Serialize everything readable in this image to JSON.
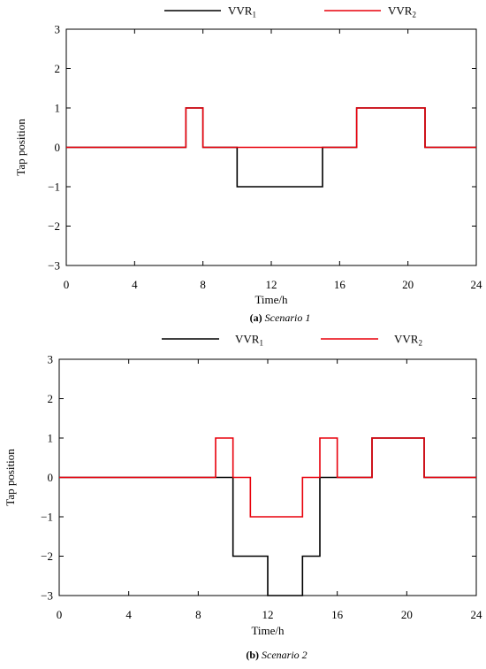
{
  "chart_data": [
    {
      "type": "line",
      "step": true,
      "caption_prefix": "(a)",
      "caption_title": "Scenario 1",
      "xlabel": "Time/h",
      "ylabel": "Tap position",
      "xlim": [
        0,
        24
      ],
      "ylim": [
        -3,
        3
      ],
      "xticks": [
        "0",
        "4",
        "8",
        "12",
        "16",
        "20",
        "24"
      ],
      "yticks": [
        "3",
        "2",
        "1",
        "0",
        "−1",
        "−2",
        "−3"
      ],
      "legend_position": "top",
      "series": [
        {
          "name_base": "VVR",
          "name_sub": "1",
          "color": "#000000",
          "x": [
            0,
            7,
            8,
            10,
            15,
            17,
            21,
            24
          ],
          "y": [
            0,
            1,
            0,
            -1,
            0,
            1,
            0,
            0
          ]
        },
        {
          "name_base": "VVR",
          "name_sub": "2",
          "color": "#e8000b",
          "x": [
            0,
            7,
            8,
            17,
            21,
            24
          ],
          "y": [
            0,
            1,
            0,
            1,
            0,
            0
          ]
        }
      ]
    },
    {
      "type": "line",
      "step": true,
      "caption_prefix": "(b)",
      "caption_title": "Scenario 2",
      "xlabel": "Time/h",
      "ylabel": "Tap position",
      "xlim": [
        0,
        24
      ],
      "ylim": [
        -3,
        3
      ],
      "xticks": [
        "0",
        "4",
        "8",
        "12",
        "16",
        "20",
        "24"
      ],
      "yticks": [
        "3",
        "2",
        "1",
        "0",
        "−1",
        "−2",
        "−3"
      ],
      "legend_position": "top",
      "series": [
        {
          "name_base": "VVR",
          "name_sub": "1",
          "color": "#000000",
          "x": [
            0,
            9,
            10,
            12,
            14,
            15,
            16,
            18,
            21,
            24
          ],
          "y": [
            0,
            0,
            -2,
            -3,
            -2,
            0,
            0,
            1,
            0,
            0
          ]
        },
        {
          "name_base": "VVR",
          "name_sub": "2",
          "color": "#e8000b",
          "x": [
            0,
            9,
            10,
            11,
            14,
            15,
            16,
            18,
            21,
            24
          ],
          "y": [
            0,
            1,
            0,
            -1,
            0,
            1,
            0,
            1,
            0,
            0
          ]
        }
      ]
    }
  ]
}
